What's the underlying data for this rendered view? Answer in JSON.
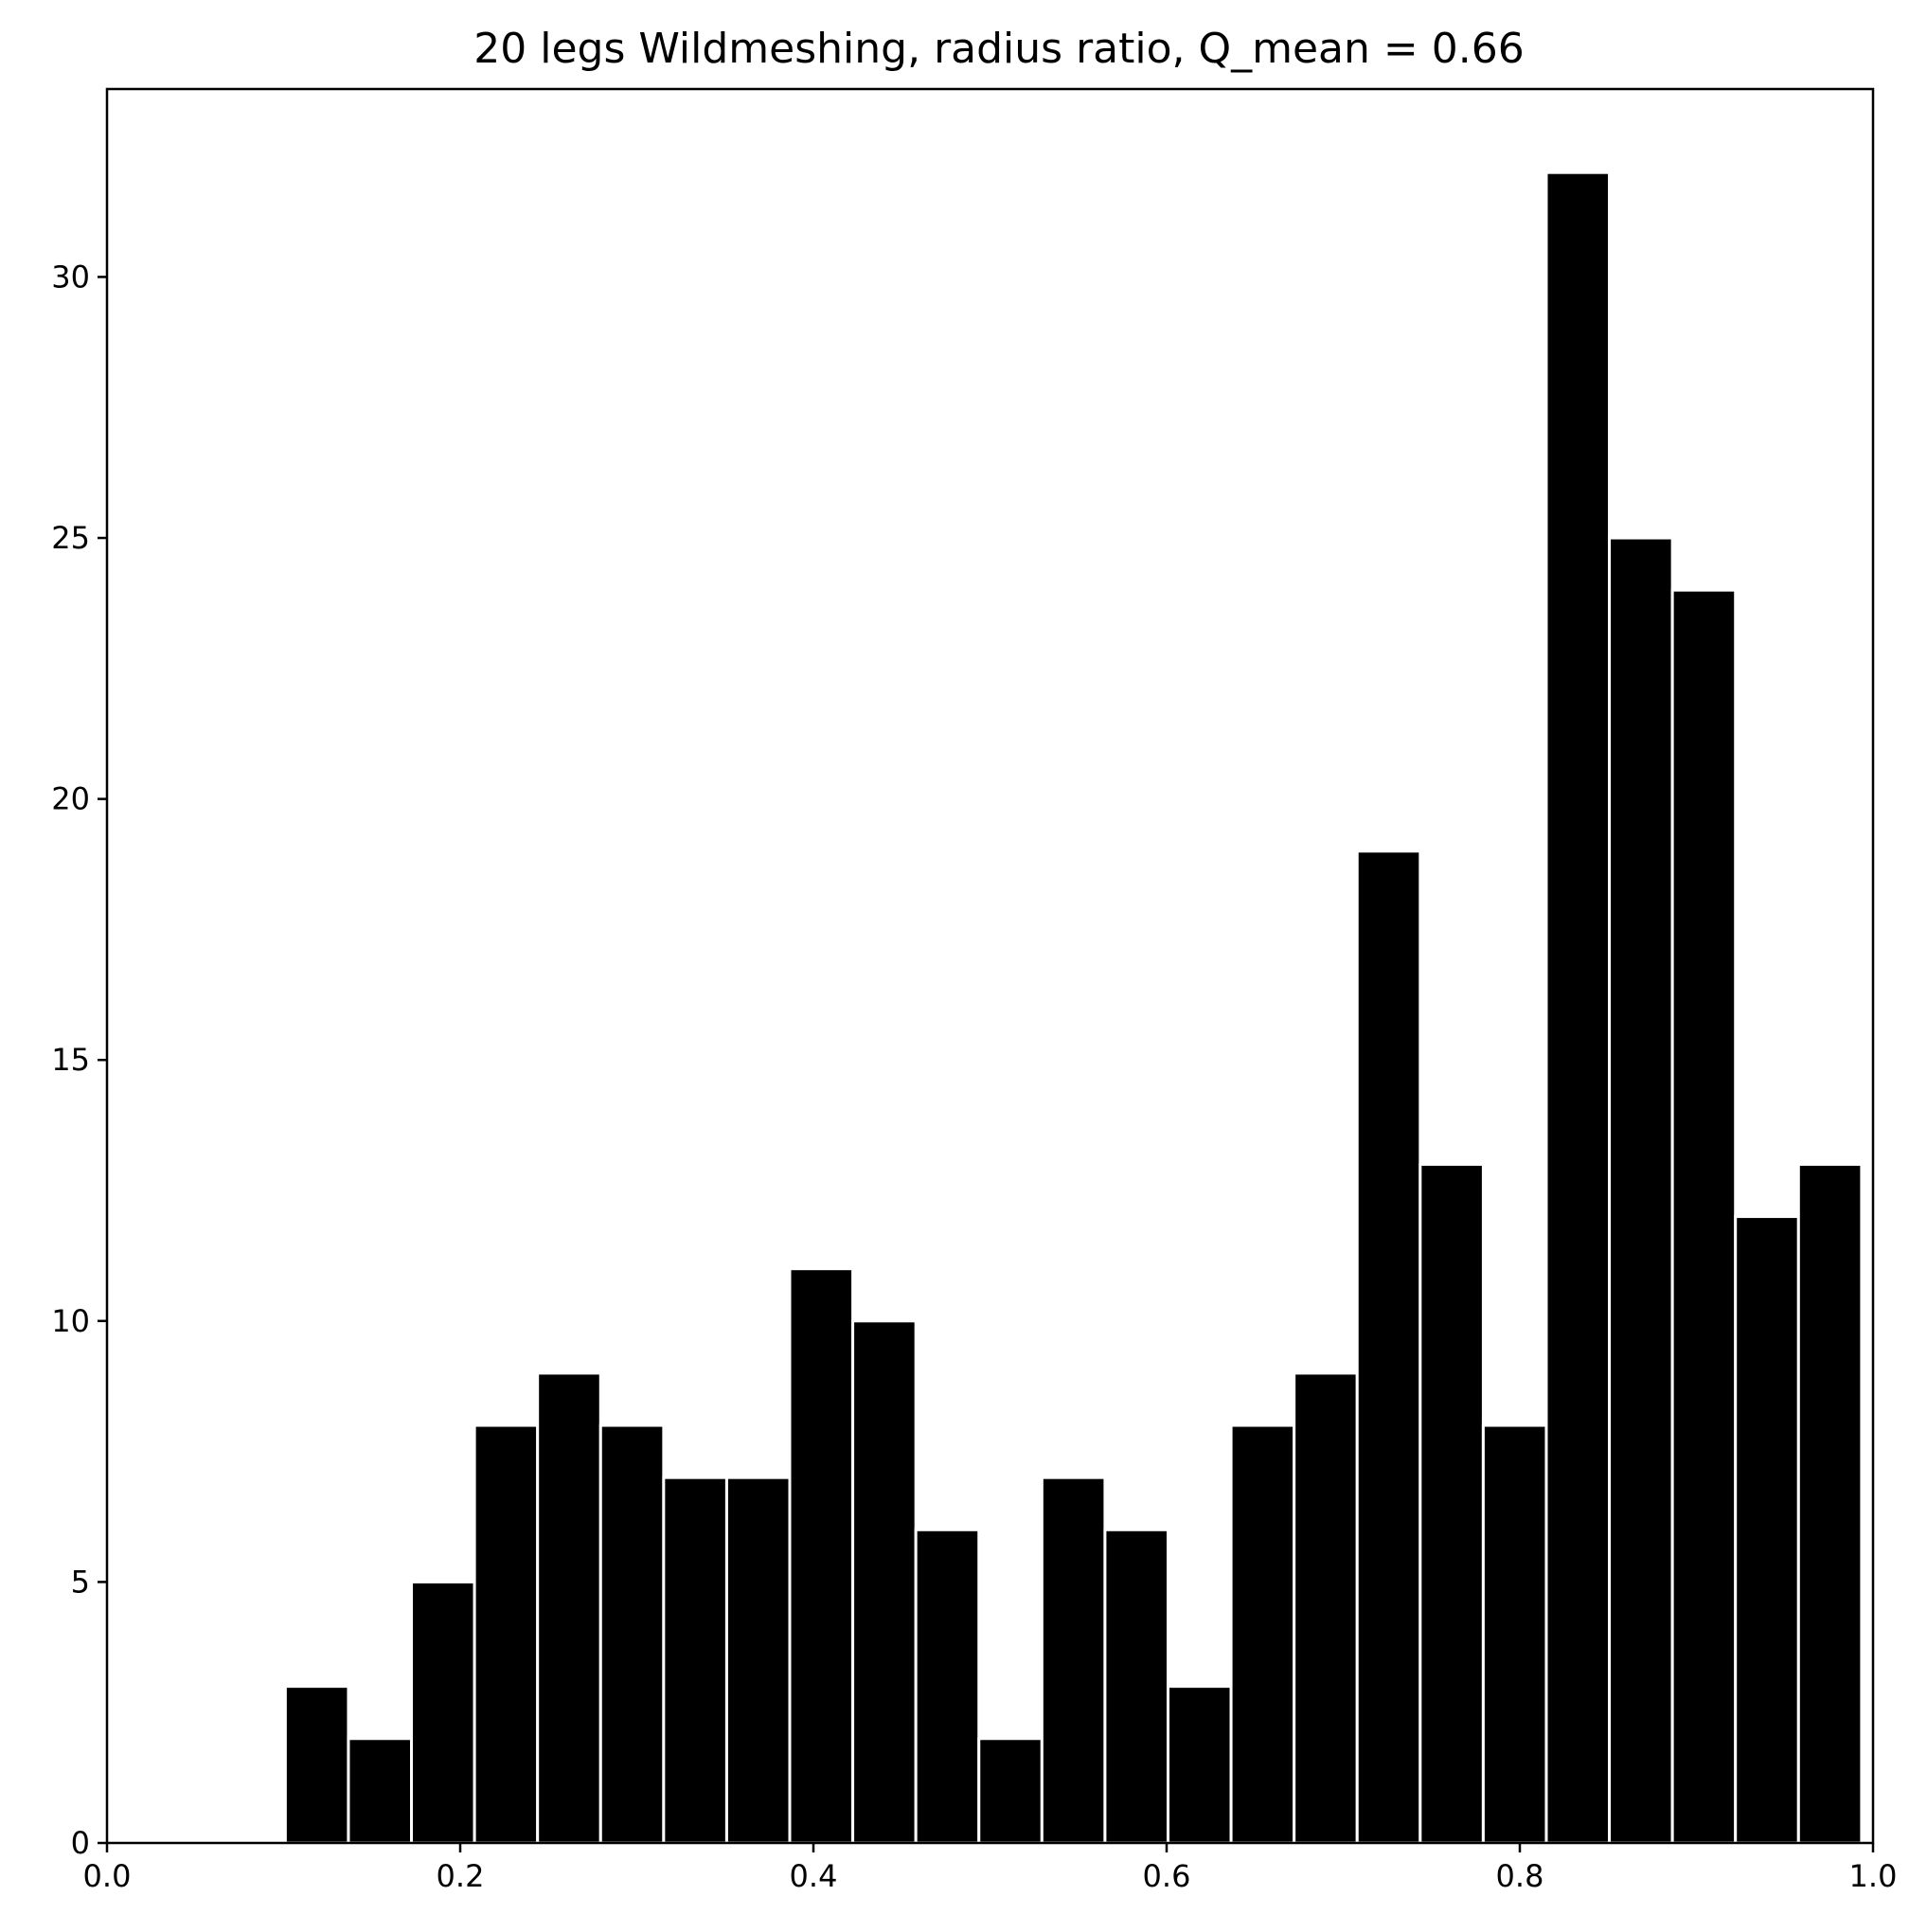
{
  "chart_data": {
    "type": "bar",
    "title": "20 legs Wildmeshing, radius ratio, Q_mean = 0.66",
    "xlabel": "",
    "ylabel": "",
    "xlim": [
      0.0,
      1.0
    ],
    "ylim": [
      0,
      33.6
    ],
    "x_ticks": [
      "0.0",
      "0.2",
      "0.4",
      "0.6",
      "0.8",
      "1.0"
    ],
    "x_tick_values": [
      0.0,
      0.2,
      0.4,
      0.6,
      0.8,
      1.0
    ],
    "y_ticks": [
      "0",
      "5",
      "10",
      "15",
      "20",
      "25",
      "30"
    ],
    "y_tick_values": [
      0,
      5,
      10,
      15,
      20,
      25,
      30
    ],
    "bin_edges": [
      0.101,
      0.1367,
      0.1724,
      0.2081,
      0.2438,
      0.2795,
      0.3152,
      0.3509,
      0.3866,
      0.4223,
      0.458,
      0.4937,
      0.5294,
      0.5651,
      0.6008,
      0.6365,
      0.6722,
      0.7079,
      0.7436,
      0.7793,
      0.815,
      0.8507,
      0.8864,
      0.9221,
      0.9578,
      0.9935
    ],
    "values": [
      3,
      2,
      5,
      8,
      9,
      8,
      7,
      7,
      11,
      10,
      6,
      2,
      7,
      6,
      3,
      8,
      9,
      19,
      13,
      8,
      32,
      25,
      24,
      12,
      13
    ],
    "bar_color": "#000000",
    "edge_color": "#ffffff",
    "grid": false,
    "legend": "none"
  }
}
